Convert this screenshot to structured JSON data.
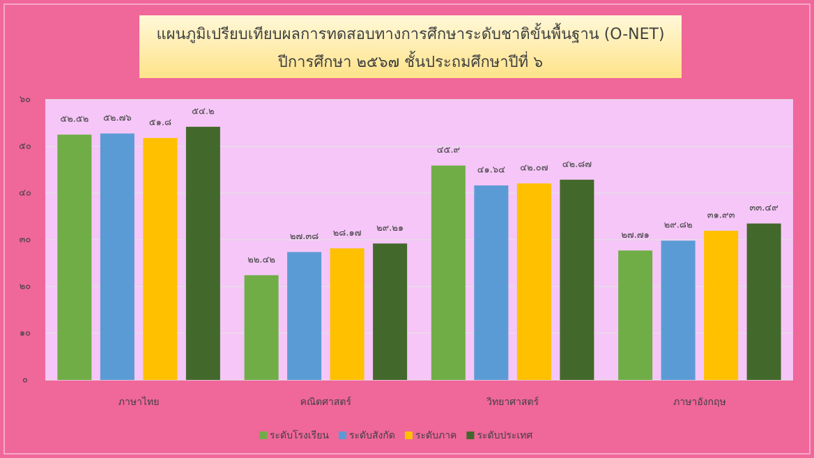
{
  "chart_data": {
    "type": "bar",
    "title": "แผนภูมิเปรียบเทียบผลการทดสอบทางการศึกษาระดับชาติขั้นพื้นฐาน (O-NET)",
    "subtitle": "ปีการศึกษา ๒๕๖๗ ชั้นประถมศึกษาปีที่ ๖",
    "categories": [
      "ภาษาไทย",
      "คณิตศาสตร์",
      "วิทยาศาสตร์",
      "ภาษาอังกฤษ"
    ],
    "series": [
      {
        "name": "ระดับโรงเรียน",
        "color": "#70ad47",
        "values": [
          52.52,
          22.42,
          45.9,
          27.71
        ],
        "value_labels": [
          "๕๒.๕๒",
          "๒๒.๔๒",
          "๔๕.๙",
          "๒๗.๗๑"
        ]
      },
      {
        "name": "ระดับสังกัด",
        "color": "#5b9bd5",
        "values": [
          52.76,
          27.38,
          41.64,
          29.82
        ],
        "value_labels": [
          "๕๒.๗๖",
          "๒๗.๓๘",
          "๔๑.๖๔",
          "๒๙.๘๒"
        ]
      },
      {
        "name": "ระดับภาค",
        "color": "#ffc000",
        "values": [
          51.8,
          28.17,
          42.07,
          31.93
        ],
        "value_labels": [
          "๕๑.๘",
          "๒๘.๑๗",
          "๔๒.๐๗",
          "๓๑.๙๓"
        ]
      },
      {
        "name": "ระดับประเทศ",
        "color": "#43682b",
        "values": [
          54.2,
          29.21,
          42.87,
          33.49
        ],
        "value_labels": [
          "๕๔.๒",
          "๒๙.๒๑",
          "๔๒.๘๗",
          "๓๓.๔๙"
        ]
      }
    ],
    "ylim": [
      0,
      60
    ],
    "yticks": [
      {
        "value": 0,
        "label": "๐"
      },
      {
        "value": 10,
        "label": "๑๐"
      },
      {
        "value": 20,
        "label": "๒๐"
      },
      {
        "value": 30,
        "label": "๓๐"
      },
      {
        "value": 40,
        "label": "๔๐"
      },
      {
        "value": 50,
        "label": "๕๐"
      },
      {
        "value": 60,
        "label": "๖๐"
      }
    ],
    "grid": true,
    "legend": "bottom"
  }
}
